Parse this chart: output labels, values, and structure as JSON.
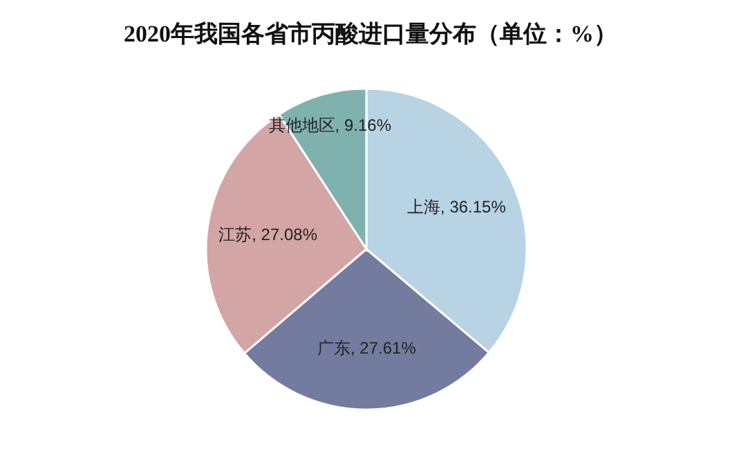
{
  "chart_data": {
    "type": "pie",
    "title": "2020年我国各省市丙酸进口量分布（单位：%）",
    "categories": [
      "上海",
      "广东",
      "江苏",
      "其他地区"
    ],
    "values": [
      36.15,
      27.61,
      27.08,
      9.16
    ],
    "value_labels": [
      "36.15%",
      "27.61%",
      "27.08%",
      "9.16%"
    ],
    "colors": [
      "#b8d3e3",
      "#737c9f",
      "#d4a5a5",
      "#7fb2ae"
    ]
  }
}
